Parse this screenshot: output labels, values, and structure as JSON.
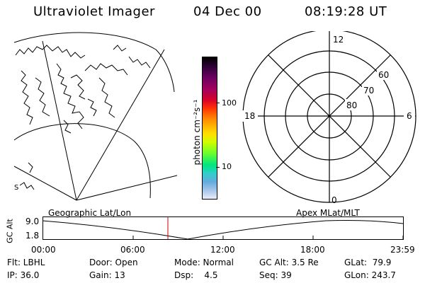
{
  "header": {
    "title": "Ultraviolet Imager",
    "date": "04 Dec 00",
    "time": "08:19:28 UT"
  },
  "colorbar": {
    "unit_label": "photon cm⁻²s⁻¹",
    "ticks": [
      "100",
      "10"
    ],
    "colors": [
      "#000000",
      "#2a0033",
      "#6a0060",
      "#a00060",
      "#d8002a",
      "#ff3300",
      "#ff7a00",
      "#ffb000",
      "#ffe000",
      "#ccff00",
      "#66ff33",
      "#00e680",
      "#33cccc",
      "#66aadd",
      "#a8c4e8",
      "#e8eef8"
    ]
  },
  "left_map": {
    "label": "Geographic Lat/Lon",
    "marker": "S"
  },
  "polar_plot": {
    "label": "Apex MLat/MLT",
    "mlt_labels": {
      "top": "12",
      "left": "18",
      "right": "6",
      "bottom": "0"
    },
    "lat_labels": [
      "60",
      "70",
      "80"
    ]
  },
  "altitude_plot": {
    "ylabel": "GC Alt",
    "ytick_labels": [
      "9.0",
      "1.8"
    ],
    "xtick_labels": [
      "00:00",
      "06:00",
      "12:00",
      "18:00",
      "23:59"
    ],
    "current_time_color": "#cc0000"
  },
  "info": {
    "row1": {
      "filter": "Flt: LBHL",
      "door": "Door: Open",
      "mode": "Mode: Normal",
      "gc_alt": "GC Alt: 3.5 Re",
      "glat": "GLat:  79.9"
    },
    "row2": {
      "ip": "IP: 36.0",
      "gain": "Gain: 13",
      "dsp": "Dsp:    4.5",
      "seq": "Seq: 39",
      "glon": "GLon: 243.7"
    }
  }
}
